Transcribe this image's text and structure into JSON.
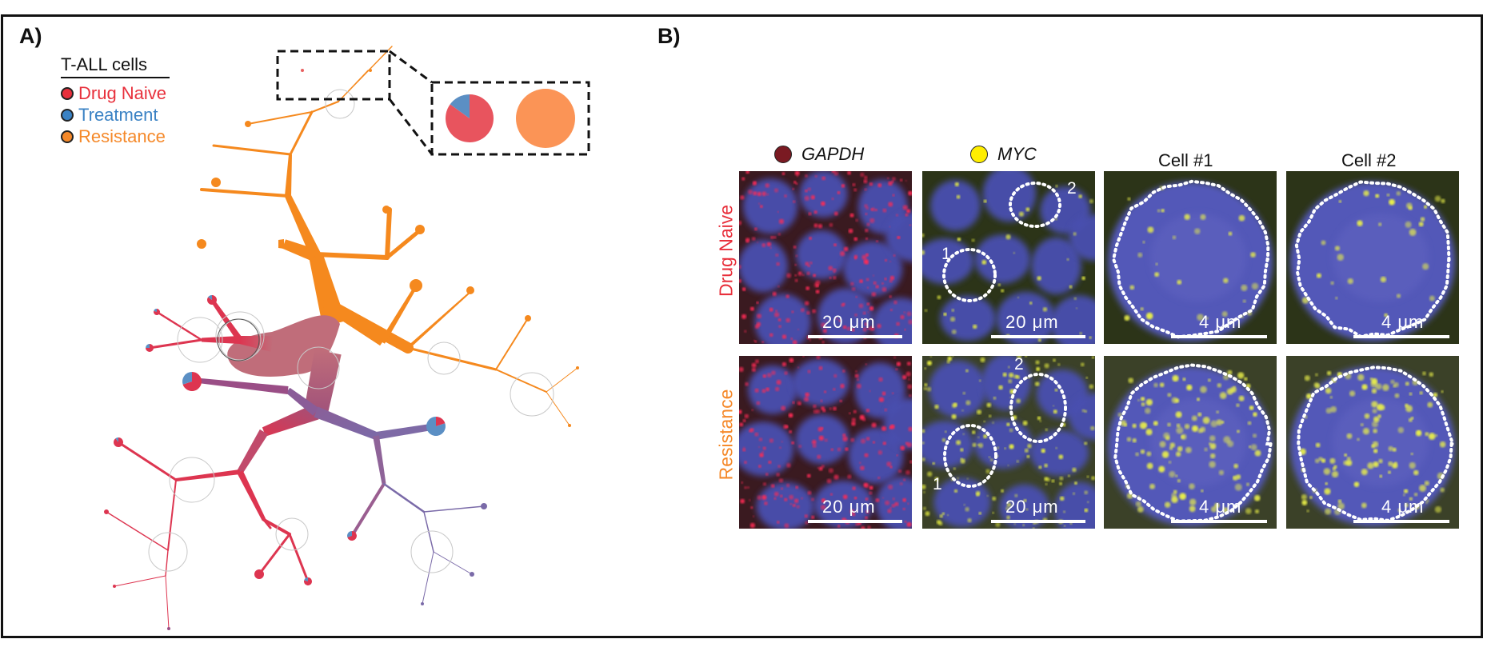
{
  "panels": {
    "a_label": "A)",
    "b_label": "B)"
  },
  "legend": {
    "title": "T-ALL cells",
    "items": [
      {
        "label": "Drug Naive",
        "color": "#e8303c"
      },
      {
        "label": "Treatment",
        "color": "#3a82c4"
      },
      {
        "label": "Resistance",
        "color": "#f5892a"
      }
    ]
  },
  "colors": {
    "orange": "#f5891e",
    "naive": "#dd3550",
    "mixed": "#c06d7a",
    "purple": "#7a6aa8",
    "pie_red": "#e8545e",
    "pie_blue": "#5b8fc4",
    "pie_orange": "#fb9456"
  },
  "inset_pies": [
    {
      "name": "mixed-pie",
      "slices": [
        {
          "label": "Drug Naive",
          "fraction": 0.85
        },
        {
          "label": "Treatment",
          "fraction": 0.15
        }
      ]
    },
    {
      "name": "resistance-pie",
      "slices": [
        {
          "label": "Resistance",
          "fraction": 1.0
        }
      ]
    }
  ],
  "micrographs": {
    "columns": [
      {
        "label": "GAPDH",
        "italic": true,
        "dot_color": "#7a1a22"
      },
      {
        "label": "MYC",
        "italic": true,
        "dot_color": "#ffee00"
      },
      {
        "label": "Cell #1",
        "italic": false,
        "dot_color": ""
      },
      {
        "label": "Cell #2",
        "italic": false,
        "dot_color": ""
      }
    ],
    "rows": [
      {
        "label": "Drug Naive",
        "color": "#e8303c"
      },
      {
        "label": "Resistance",
        "color": "#f5892a"
      }
    ],
    "scale_labels": {
      "overview": "20 μm",
      "cell": "4 μm"
    },
    "cell_numbers": [
      "1",
      "2"
    ]
  }
}
